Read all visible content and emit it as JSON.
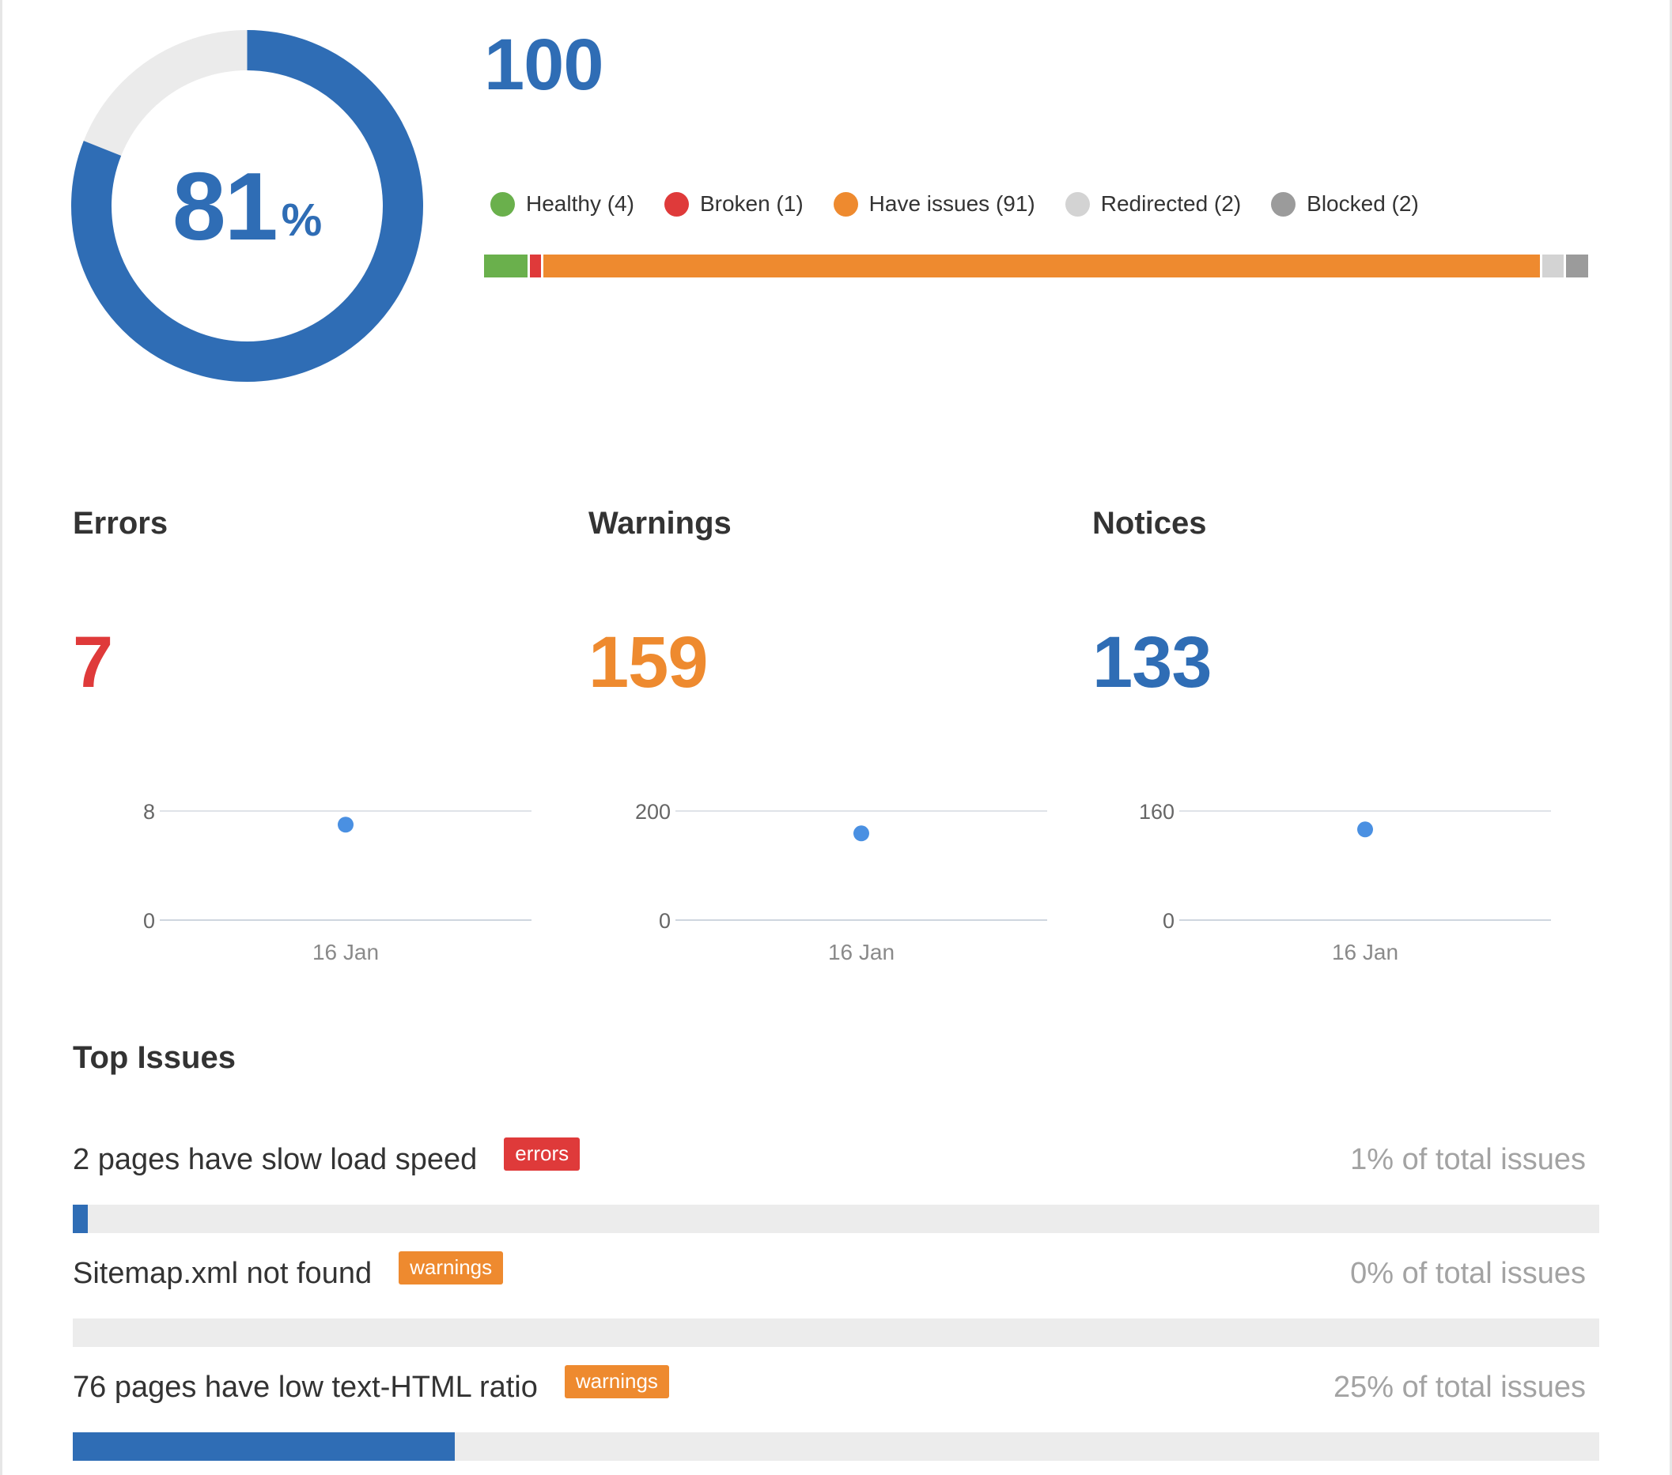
{
  "colors": {
    "primary": "#2f6db5",
    "healthy": "#6ab04c",
    "broken": "#df3a3a",
    "issues": "#ee8a2f",
    "redirected": "#d3d3d3",
    "blocked": "#9b9b9b",
    "track": "#ebebeb",
    "dot": "#4a90e2"
  },
  "site_health": {
    "score": "81",
    "unit": "%",
    "score_fraction": 0.81
  },
  "crawled": {
    "total": "100",
    "legend": [
      {
        "label": "Healthy (4)",
        "count": 4,
        "color": "#6ab04c"
      },
      {
        "label": "Broken (1)",
        "count": 1,
        "color": "#df3a3a"
      },
      {
        "label": "Have issues (91)",
        "count": 91,
        "color": "#ee8a2f"
      },
      {
        "label": "Redirected (2)",
        "count": 2,
        "color": "#d3d3d3"
      },
      {
        "label": "Blocked (2)",
        "count": 2,
        "color": "#9b9b9b"
      }
    ]
  },
  "metrics": [
    {
      "title": "Errors",
      "value": "7",
      "color": "#df3a3a",
      "chart_data": {
        "type": "scatter",
        "x": [
          "16 Jan"
        ],
        "y": [
          7
        ],
        "ylim": [
          0,
          8
        ],
        "yticks": [
          "8",
          "0"
        ],
        "xticks": [
          "16 Jan"
        ]
      }
    },
    {
      "title": "Warnings",
      "value": "159",
      "color": "#ee8a2f",
      "chart_data": {
        "type": "scatter",
        "x": [
          "16 Jan"
        ],
        "y": [
          159
        ],
        "ylim": [
          0,
          200
        ],
        "yticks": [
          "200",
          "0"
        ],
        "xticks": [
          "16 Jan"
        ]
      }
    },
    {
      "title": "Notices",
      "value": "133",
      "color": "#2f6db5",
      "chart_data": {
        "type": "scatter",
        "x": [
          "16 Jan"
        ],
        "y": [
          133
        ],
        "ylim": [
          0,
          160
        ],
        "yticks": [
          "160",
          "0"
        ],
        "xticks": [
          "16 Jan"
        ]
      }
    }
  ],
  "top_issues": {
    "title": "Top Issues",
    "items": [
      {
        "title": "2 pages have slow load speed",
        "badge": "errors",
        "badge_color": "#df3a3a",
        "share": "1% of total issues",
        "fraction": 0.01
      },
      {
        "title": "Sitemap.xml not found",
        "badge": "warnings",
        "badge_color": "#ee8a2f",
        "share": "0% of total issues",
        "fraction": 0.0
      },
      {
        "title": "76 pages have low text-HTML ratio",
        "badge": "warnings",
        "badge_color": "#ee8a2f",
        "share": "25% of total issues",
        "fraction": 0.25
      }
    ]
  }
}
